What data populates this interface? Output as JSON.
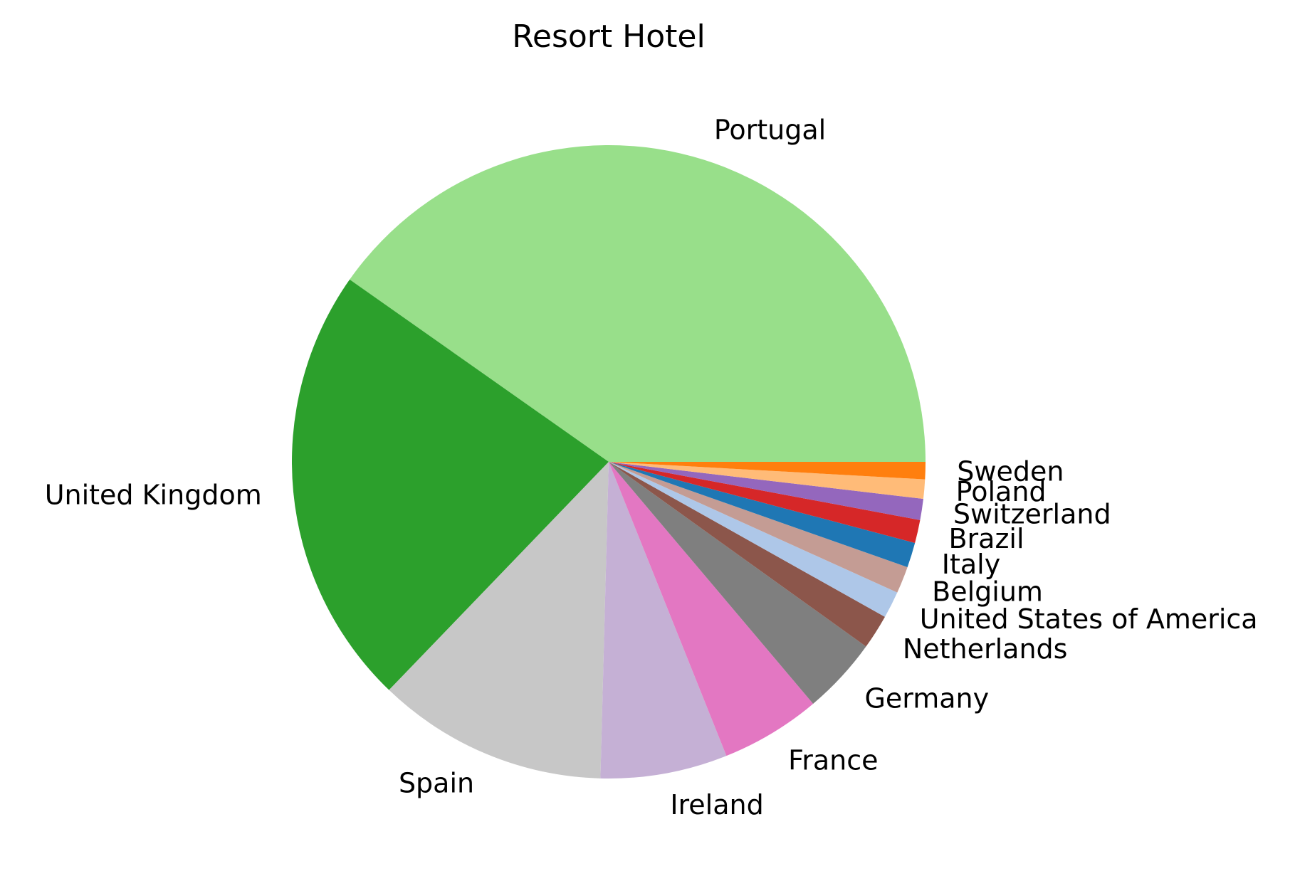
{
  "chart_data": {
    "type": "pie",
    "title": "Resort Hotel",
    "slices": [
      {
        "label": "Portugal",
        "value": 41.0,
        "color": "#98df8a"
      },
      {
        "label": "United Kingdom",
        "value": 23.0,
        "color": "#2ca02c"
      },
      {
        "label": "Spain",
        "value": 12.0,
        "color": "#c7c7c7"
      },
      {
        "label": "Ireland",
        "value": 6.6,
        "color": "#c5b0d5"
      },
      {
        "label": "France",
        "value": 5.2,
        "color": "#e377c2"
      },
      {
        "label": "Germany",
        "value": 4.0,
        "color": "#7f7f7f"
      },
      {
        "label": "Netherlands",
        "value": 1.8,
        "color": "#8c564b"
      },
      {
        "label": "United States of America",
        "value": 1.4,
        "color": "#aec7e8"
      },
      {
        "label": "Belgium",
        "value": 1.4,
        "color": "#c49c94"
      },
      {
        "label": "Italy",
        "value": 1.3,
        "color": "#1f77b4"
      },
      {
        "label": "Brazil",
        "value": 1.2,
        "color": "#d62728"
      },
      {
        "label": "Switzerland",
        "value": 1.1,
        "color": "#9467bd"
      },
      {
        "label": "Poland",
        "value": 1.0,
        "color": "#ffbb78"
      },
      {
        "label": "Sweden",
        "value": 0.9,
        "color": "#ff7f0e"
      }
    ]
  }
}
